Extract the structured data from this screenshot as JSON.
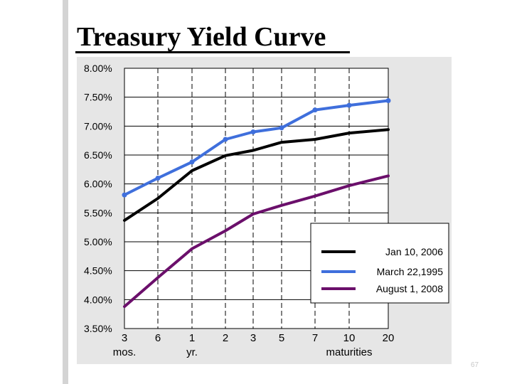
{
  "title": "Treasury Yield Curve",
  "page_number": "67",
  "chart_data": {
    "type": "line",
    "categories": [
      "3 mos.",
      "6 mos.",
      "1 yr.",
      "2",
      "3",
      "5",
      "7",
      "10",
      "20"
    ],
    "x_tick_labels": [
      {
        "top": "3",
        "bottom": "mos."
      },
      {
        "top": "6",
        "bottom": ""
      },
      {
        "top": "1",
        "bottom": "yr."
      },
      {
        "top": "2",
        "bottom": ""
      },
      {
        "top": "3",
        "bottom": ""
      },
      {
        "top": "5",
        "bottom": ""
      },
      {
        "top": "7",
        "bottom": ""
      },
      {
        "top": "10",
        "bottom": "maturities"
      },
      {
        "top": "20",
        "bottom": ""
      }
    ],
    "y_ticks": [
      {
        "value": 3.5,
        "label": "3.50%"
      },
      {
        "value": 4.0,
        "label": "4.00%"
      },
      {
        "value": 4.5,
        "label": "4.50%"
      },
      {
        "value": 5.0,
        "label": "5.00%"
      },
      {
        "value": 5.5,
        "label": "5.50%"
      },
      {
        "value": 6.0,
        "label": "6.00%"
      },
      {
        "value": 6.5,
        "label": "6.50%"
      },
      {
        "value": 7.0,
        "label": "7.00%"
      },
      {
        "value": 7.5,
        "label": "7.50%"
      },
      {
        "value": 8.0,
        "label": "8.00%"
      }
    ],
    "ylim": [
      3.5,
      8.0
    ],
    "grid": true,
    "legend_position": "lower-right",
    "series": [
      {
        "name": "Jan 10, 2006",
        "color": "#000000",
        "marker": false,
        "values": [
          5.37,
          5.75,
          6.23,
          6.49,
          6.58,
          6.72,
          6.77,
          6.88,
          6.94
        ]
      },
      {
        "name": "March 22,1995",
        "color": "#3f6fdc",
        "marker": true,
        "values": [
          5.81,
          6.1,
          6.38,
          6.77,
          6.9,
          6.97,
          7.28,
          7.36,
          7.44
        ]
      },
      {
        "name": "August 1, 2008",
        "color": "#6b0f6b",
        "marker": false,
        "values": [
          3.88,
          4.38,
          4.88,
          5.19,
          5.48,
          5.63,
          5.79,
          5.97,
          6.14
        ]
      }
    ]
  }
}
